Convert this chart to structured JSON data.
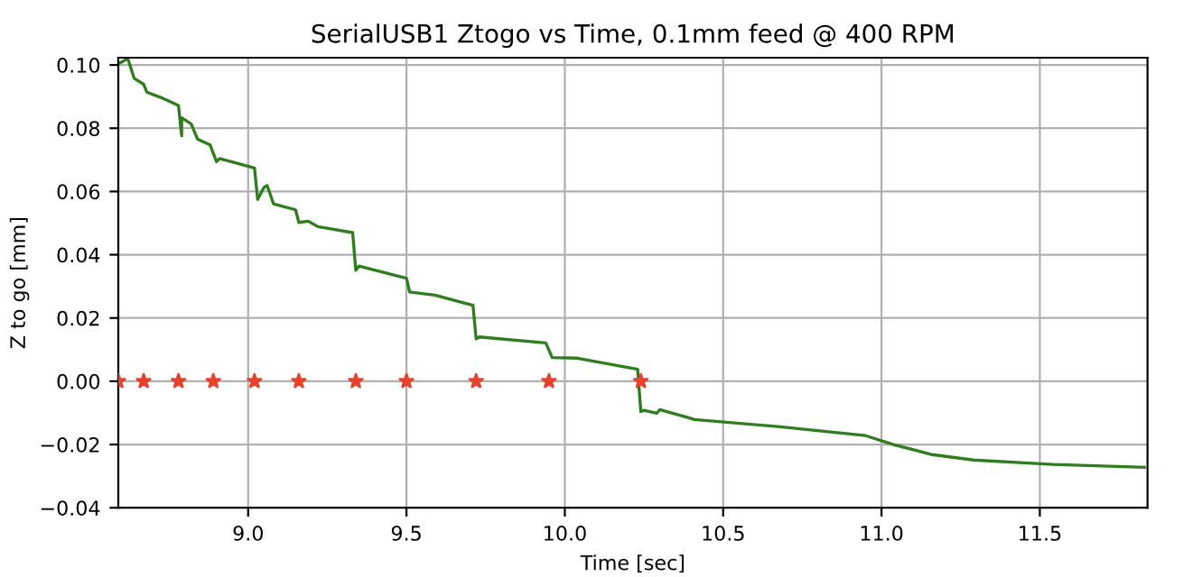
{
  "chart_data": {
    "type": "line",
    "title": "SerialUSB1 Ztogo vs Time, 0.1mm feed @ 400 RPM",
    "xlabel": "Time [sec]",
    "ylabel": "Z to go [mm]",
    "series": [
      {
        "color": "#2e7d1e",
        "marker": "none",
        "x": [
          8.594,
          8.62,
          8.64,
          8.67,
          8.68,
          8.73,
          8.78,
          8.79,
          8.79,
          8.82,
          8.84,
          8.88,
          8.9,
          8.91,
          9.02,
          9.03,
          9.05,
          9.06,
          9.08,
          9.15,
          9.16,
          9.19,
          9.22,
          9.33,
          9.34,
          9.35,
          9.5,
          9.51,
          9.59,
          9.71,
          9.72,
          9.73,
          9.94,
          9.96,
          10.04,
          10.23,
          10.24,
          10.25,
          10.29,
          10.3,
          10.41,
          10.68,
          10.95,
          11.04,
          11.16,
          11.29,
          11.54,
          11.83
        ],
        "values": [
          0.1006,
          0.102,
          0.0958,
          0.0939,
          0.0914,
          0.0895,
          0.0872,
          0.0776,
          0.0833,
          0.0814,
          0.0766,
          0.0747,
          0.0694,
          0.0704,
          0.0674,
          0.0575,
          0.0613,
          0.0619,
          0.0561,
          0.0542,
          0.0502,
          0.0506,
          0.0489,
          0.047,
          0.0351,
          0.0364,
          0.0326,
          0.0282,
          0.0272,
          0.024,
          0.0134,
          0.014,
          0.0121,
          0.0075,
          0.0073,
          0.0038,
          -0.0096,
          -0.0092,
          -0.0101,
          -0.009,
          -0.0121,
          -0.0144,
          -0.0172,
          -0.0201,
          -0.0232,
          -0.0249,
          -0.0263,
          -0.0272
        ]
      },
      {
        "type": "scatter",
        "color": "#e8412c",
        "marker": "star",
        "x": [
          8.59,
          8.67,
          8.78,
          8.89,
          9.02,
          9.16,
          9.34,
          9.5,
          9.72,
          9.95,
          10.24
        ],
        "values": [
          0,
          0,
          0,
          0,
          0,
          0,
          0,
          0,
          0,
          0,
          0
        ]
      }
    ],
    "xlim": [
      8.59,
      11.84
    ],
    "ylim": [
      -0.04,
      0.1023
    ],
    "xticks": [
      {
        "value": 9.0,
        "label": "9.0"
      },
      {
        "value": 9.5,
        "label": "9.5"
      },
      {
        "value": 10.0,
        "label": "10.0"
      },
      {
        "value": 10.5,
        "label": "10.5"
      },
      {
        "value": 11.0,
        "label": "11.0"
      },
      {
        "value": 11.5,
        "label": "11.5"
      }
    ],
    "yticks": [
      {
        "value": -0.04,
        "label": "−0.04"
      },
      {
        "value": -0.02,
        "label": "−0.02"
      },
      {
        "value": 0,
        "label": "0.00"
      },
      {
        "value": 0.02,
        "label": "0.02"
      },
      {
        "value": 0.04,
        "label": "0.04"
      },
      {
        "value": 0.06,
        "label": "0.06"
      },
      {
        "value": 0.08,
        "label": "0.08"
      },
      {
        "value": 0.1,
        "label": "0.10"
      }
    ],
    "grid": true
  }
}
